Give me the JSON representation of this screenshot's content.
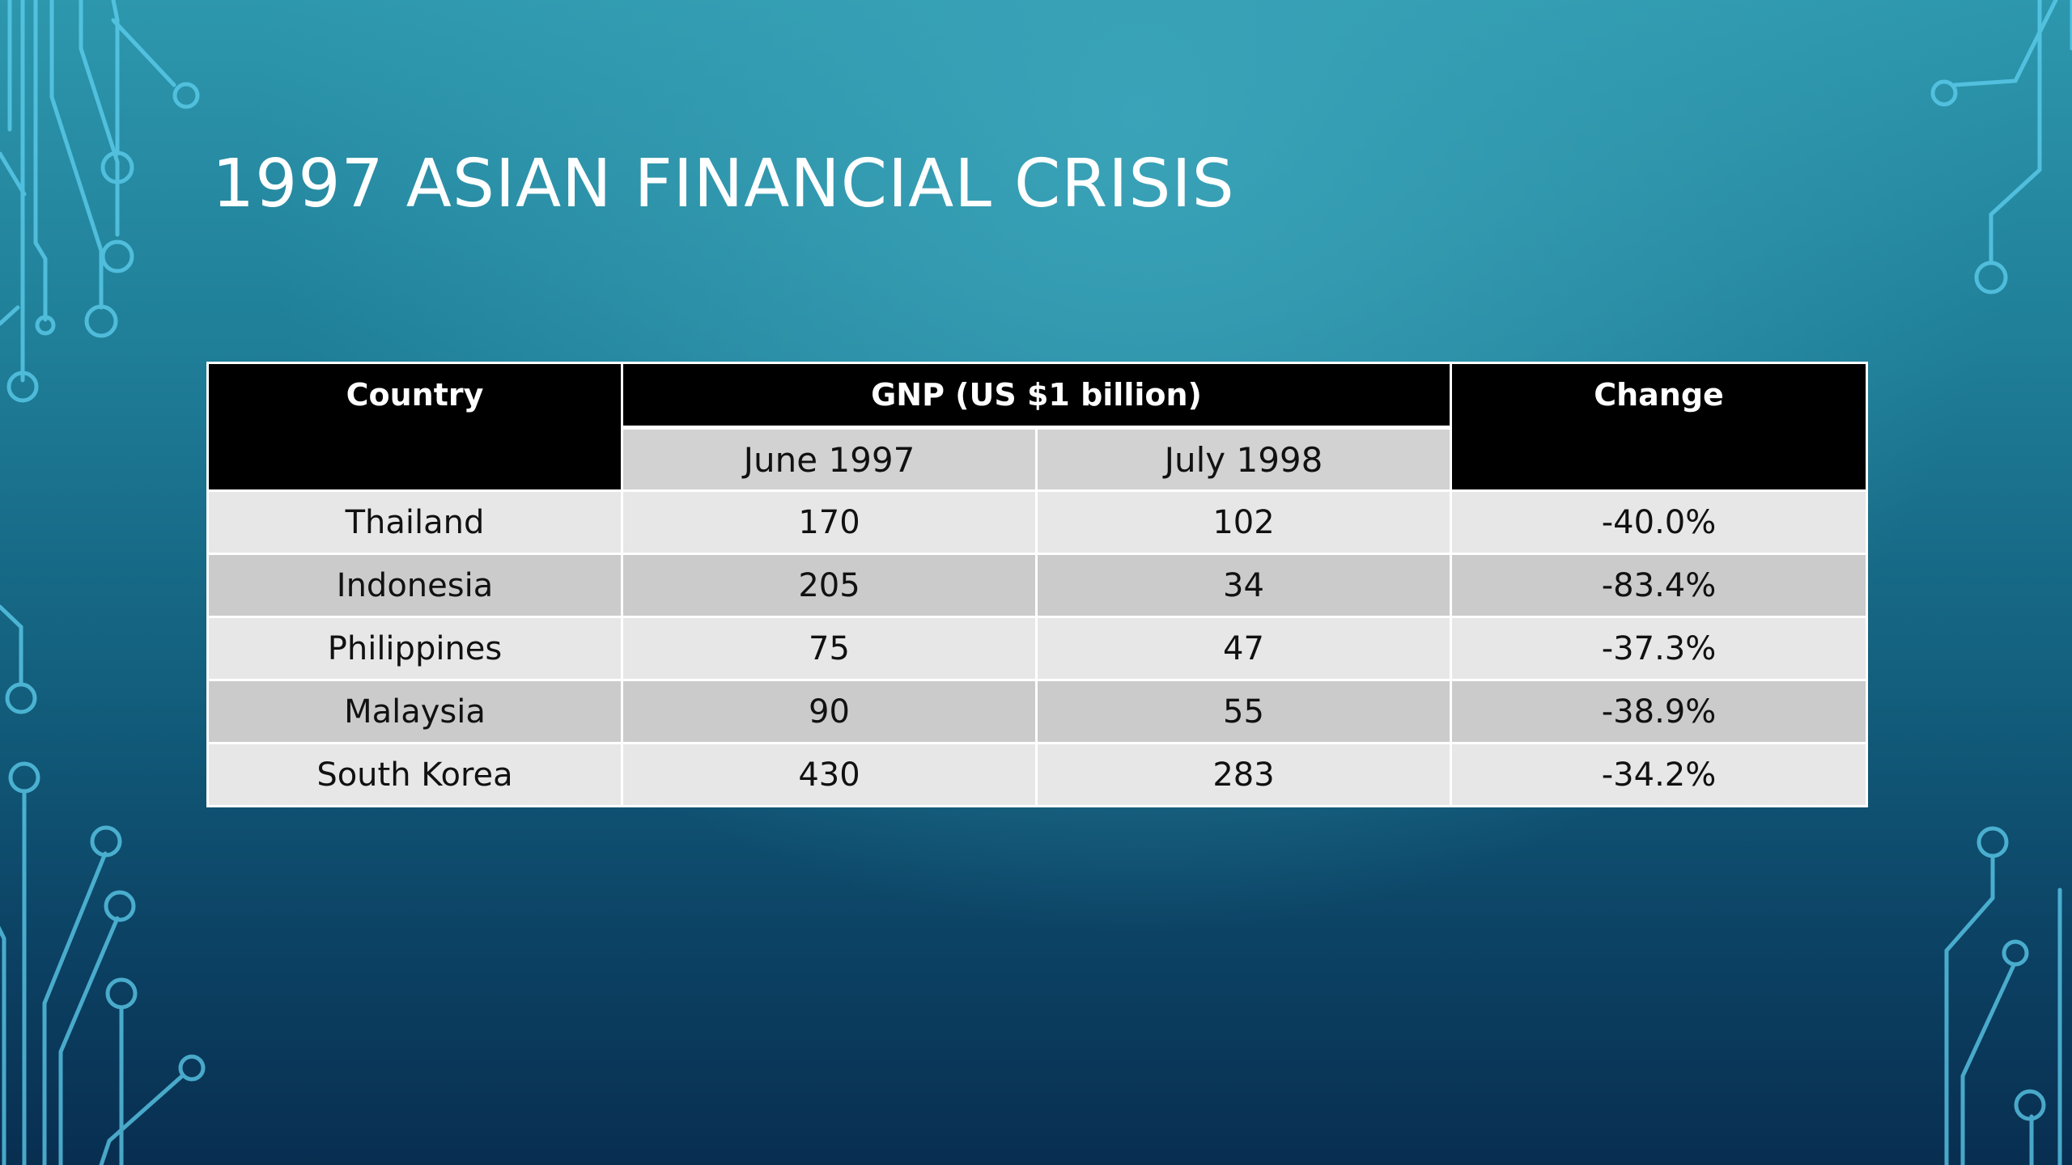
{
  "slide": {
    "title": "1997 ASIAN FINANCIAL CRISIS"
  },
  "table": {
    "headers": {
      "country": "Country",
      "gnp": "GNP (US $1 billion)",
      "change": "Change",
      "june": "June 1997",
      "july": "July 1998"
    },
    "rows": [
      {
        "country": "Thailand",
        "june": "170",
        "july": "102",
        "change": "-40.0%"
      },
      {
        "country": "Indonesia",
        "june": "205",
        "july": "34",
        "change": "-83.4%"
      },
      {
        "country": "Philippines",
        "june": "75",
        "july": "47",
        "change": "-37.3%"
      },
      {
        "country": "Malaysia",
        "june": "90",
        "july": "55",
        "change": "-38.9%"
      },
      {
        "country": "South Korea",
        "june": "430",
        "july": "283",
        "change": "-34.2%"
      }
    ]
  },
  "colors": {
    "background_top": "#2d97ad",
    "background_bottom": "#082e50",
    "header_bg": "#000000",
    "subheader_bg": "#d2d2d2",
    "row_light": "#e7e7e7",
    "row_dark": "#cbcbcb",
    "circuit_line": "#5fd0f0"
  }
}
